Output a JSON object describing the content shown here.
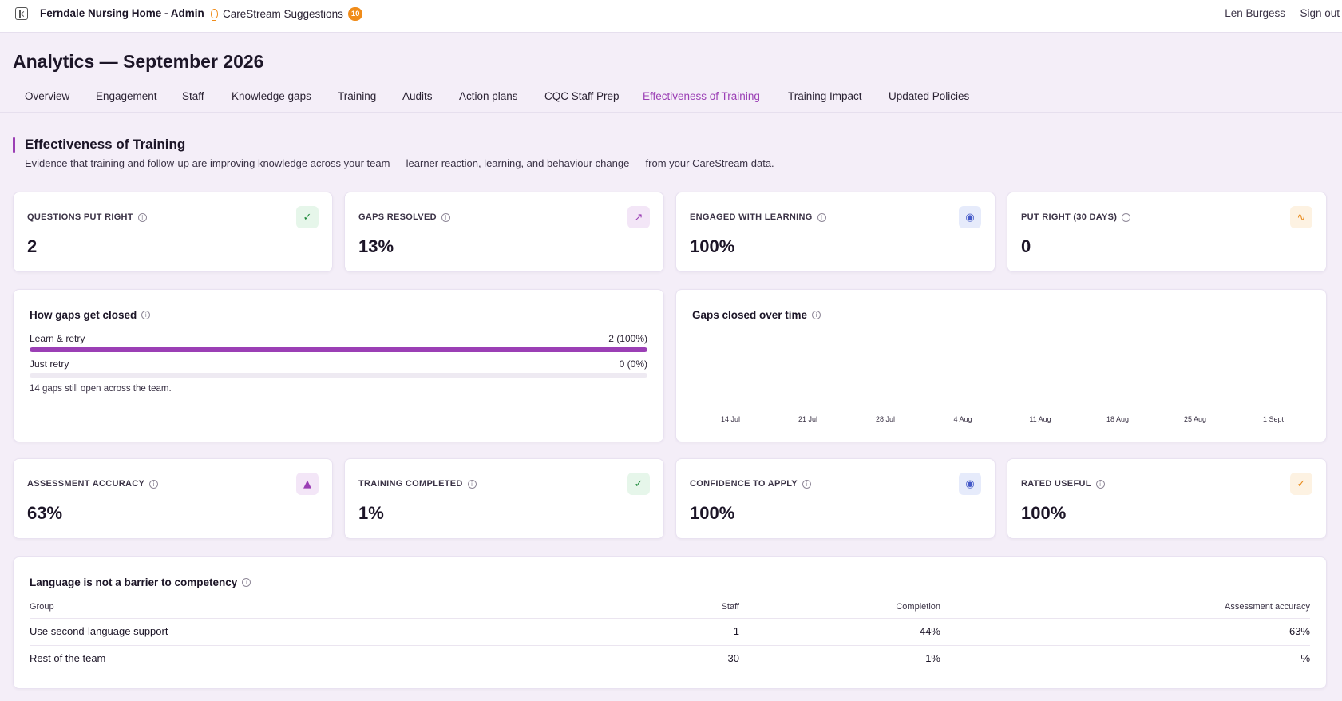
{
  "topbar": {
    "app_title": "Ferndale Nursing Home - Admin",
    "suggestions_label": "CareStream Suggestions",
    "suggestions_count": "10",
    "user_name": "Len Burgess",
    "sign_out": "Sign out"
  },
  "page_title": "Analytics — September 2026",
  "tabs": [
    {
      "label": "Overview"
    },
    {
      "label": "Engagement"
    },
    {
      "label": "Staff"
    },
    {
      "label": "Knowledge gaps"
    },
    {
      "label": "Training"
    },
    {
      "label": "Audits"
    },
    {
      "label": "Action plans"
    },
    {
      "label": "CQC Staff Prep"
    },
    {
      "label": "Effectiveness of Training",
      "active": true
    },
    {
      "label": "Training Impact"
    },
    {
      "label": "Updated Policies"
    }
  ],
  "section": {
    "title": "Effectiveness of Training",
    "description": "Evidence that training and follow-up are improving knowledge across your team — learner reaction, learning, and behaviour change — from your CareStream data."
  },
  "stats_top": [
    {
      "label": "QUESTIONS PUT RIGHT",
      "value": "2",
      "icon": "check-circle-icon"
    },
    {
      "label": "GAPS RESOLVED",
      "value": "13%",
      "icon": "trending-up-icon"
    },
    {
      "label": "ENGAGED WITH LEARNING",
      "value": "100%",
      "icon": "brain-icon"
    },
    {
      "label": "PUT RIGHT (30 DAYS)",
      "value": "0",
      "icon": "activity-icon"
    }
  ],
  "gaps_panel": {
    "title": "How gaps get closed",
    "rows": [
      {
        "label": "Learn & retry",
        "value": "2 (100%)",
        "fraction": 1.0
      },
      {
        "label": "Just retry",
        "value": "0 (0%)",
        "fraction": 0.0
      }
    ],
    "note": "14 gaps still open across the team."
  },
  "timeline_panel": {
    "title": "Gaps closed over time",
    "ticks": [
      "14 Jul",
      "21 Jul",
      "28 Jul",
      "4 Aug",
      "11 Aug",
      "18 Aug",
      "25 Aug",
      "1 Sept"
    ]
  },
  "stats_bottom": [
    {
      "label": "ASSESSMENT ACCURACY",
      "value": "63%",
      "icon": "graduation-cap-icon"
    },
    {
      "label": "TRAINING COMPLETED",
      "value": "1%",
      "icon": "check-circle-icon"
    },
    {
      "label": "CONFIDENCE TO APPLY",
      "value": "100%",
      "icon": "brain-icon"
    },
    {
      "label": "RATED USEFUL",
      "value": "100%",
      "icon": "thumbs-up-icon"
    }
  ],
  "language_table": {
    "title": "Language is not a barrier to competency",
    "columns": [
      "Group",
      "Staff",
      "Completion",
      "Assessment accuracy"
    ],
    "rows": [
      [
        "Use second-language support",
        "1",
        "44%",
        "63%"
      ],
      [
        "Rest of the team",
        "30",
        "1%",
        "—%"
      ]
    ]
  },
  "colors": {
    "accent": "#9b3fb5",
    "badge": "#f08c1a",
    "background": "#f4eef8"
  }
}
